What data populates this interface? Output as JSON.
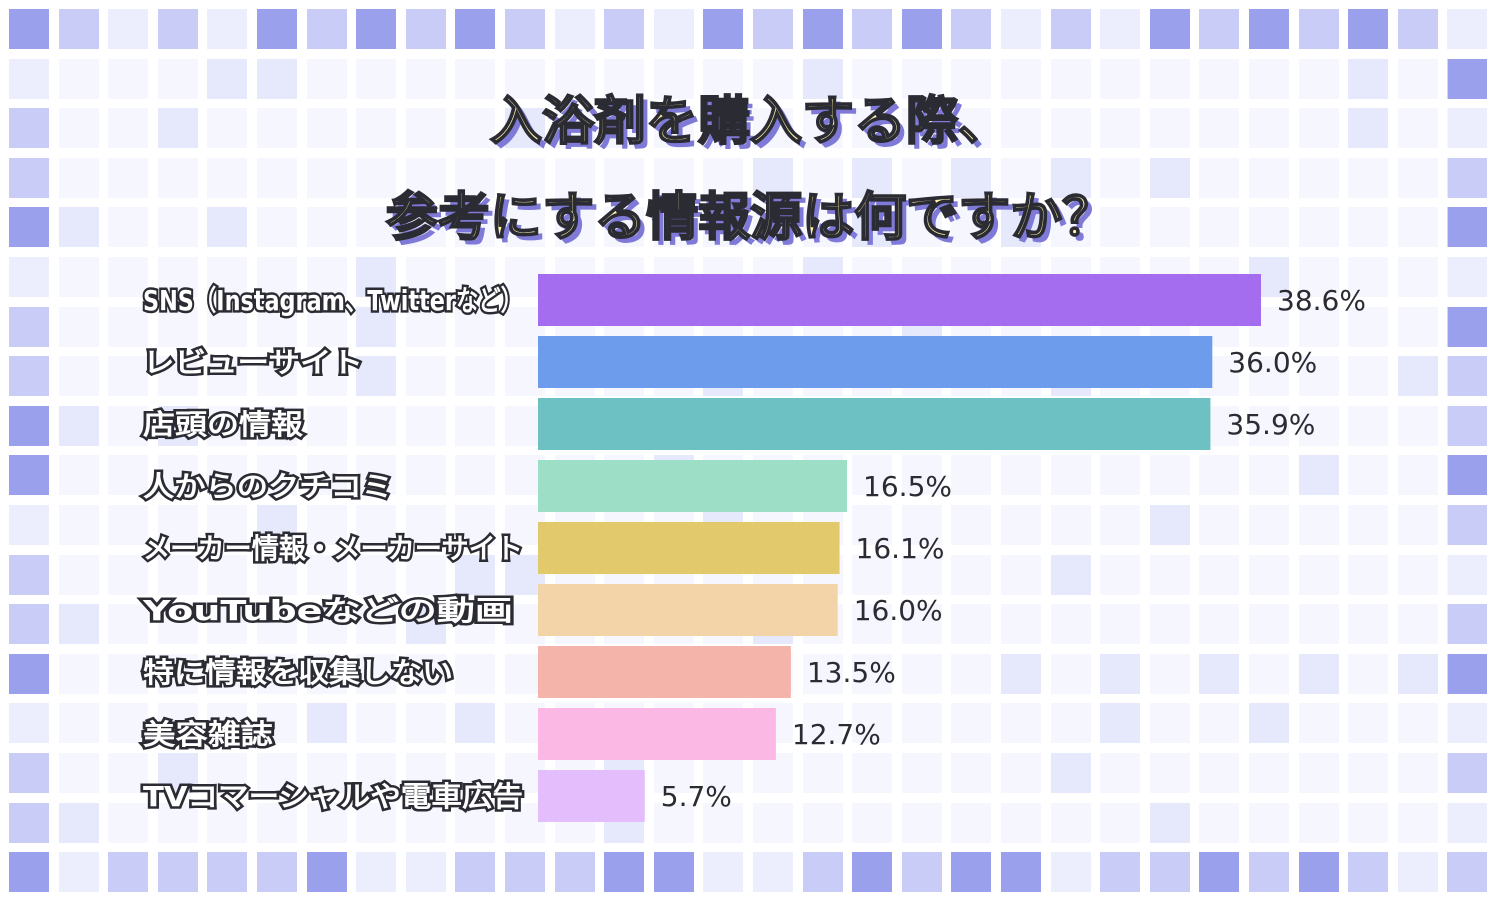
{
  "title_lines": [
    "入浴剤を購入する際、",
    "参考にする情報源は何ですか？"
  ],
  "colors": {
    "tile_dark": "#9aa0ec",
    "tile_mid": "#c8ccf6",
    "tile_light": "#eceefd",
    "title_fill": "#fff4a8",
    "title_shadow": "#7f7ad8"
  },
  "chart_data": {
    "type": "bar",
    "orientation": "horizontal",
    "title": "入浴剤を購入する際、参考にする情報源は何ですか？",
    "categories": [
      "SNS（Instagram、Twitterなど）",
      "レビューサイト",
      "店頭の情報",
      "人からのクチコミ",
      "メーカー情報・メーカーサイト",
      "YouTubeなどの動画",
      "特に情報を収集しない",
      "美容雑誌",
      "TVコマーシャルや電車広告"
    ],
    "values": [
      38.6,
      36.0,
      35.9,
      16.5,
      16.1,
      16.0,
      13.5,
      12.7,
      5.7
    ],
    "value_labels": [
      "38.6%",
      "36.0%",
      "35.9%",
      "16.5%",
      "16.1%",
      "16.0%",
      "13.5%",
      "12.7%",
      "5.7%"
    ],
    "bar_colors": [
      "#a46cee",
      "#6d9cec",
      "#6dc1c3",
      "#9ddec7",
      "#e2ca6c",
      "#f3d4a8",
      "#f5b4aa",
      "#fbb8e4",
      "#e3bdfc"
    ],
    "xlim": [
      0,
      38.6
    ],
    "grid": false,
    "legend": "none"
  }
}
